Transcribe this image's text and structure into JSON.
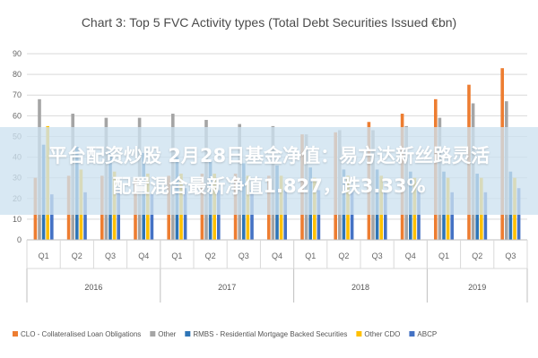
{
  "banner": {
    "line1": "平台配资炒股 2月28日基金净值：易方达新丝路灵活",
    "line2": "配置混合最新净值1.827，跌3.33%"
  },
  "chart_data": {
    "type": "bar",
    "title": "Chart 3: Top 5 FVC Activity types (Total Debt Securities Issued €bn)",
    "categories": [
      "Q1",
      "Q2",
      "Q3",
      "Q4",
      "Q1",
      "Q2",
      "Q3",
      "Q4",
      "Q1",
      "Q2",
      "Q3",
      "Q4",
      "Q1",
      "Q2",
      "Q3"
    ],
    "groups": [
      {
        "label": "2016",
        "span": 4
      },
      {
        "label": "2017",
        "span": 4
      },
      {
        "label": "2018",
        "span": 4
      },
      {
        "label": "2019",
        "span": 3
      }
    ],
    "series": [
      {
        "name": "CLO - Collateralised Loan Obligations",
        "color": "#ed7d31",
        "values": [
          30,
          31,
          31,
          30,
          31,
          32,
          32,
          31,
          51,
          52,
          57,
          61,
          68,
          75,
          83
        ]
      },
      {
        "name": "Other",
        "color": "#a5a5a5",
        "values": [
          68,
          61,
          59,
          59,
          61,
          58,
          56,
          55,
          51,
          53,
          53,
          55,
          59,
          66,
          67
        ]
      },
      {
        "name": "RMBS - Residential Mortgage Backed Securities",
        "color": "#2e75b6",
        "values": [
          46,
          45,
          43,
          42,
          40,
          38,
          37,
          36,
          35,
          34,
          34,
          33,
          33,
          32,
          33
        ]
      },
      {
        "name": "Other CDO",
        "color": "#ffc000",
        "values": [
          55,
          34,
          33,
          32,
          32,
          32,
          31,
          31,
          30,
          31,
          31,
          30,
          30,
          30,
          30
        ]
      },
      {
        "name": "ABCP",
        "color": "#4472c4",
        "values": [
          22,
          23,
          24,
          22,
          25,
          24,
          24,
          24,
          24,
          24,
          24,
          24,
          23,
          23,
          25
        ]
      }
    ],
    "ylim": [
      0,
      90
    ],
    "yticks": [
      0,
      10,
      20,
      30,
      40,
      50,
      60,
      70,
      80,
      90
    ],
    "grid": true,
    "legend": "bottom"
  }
}
